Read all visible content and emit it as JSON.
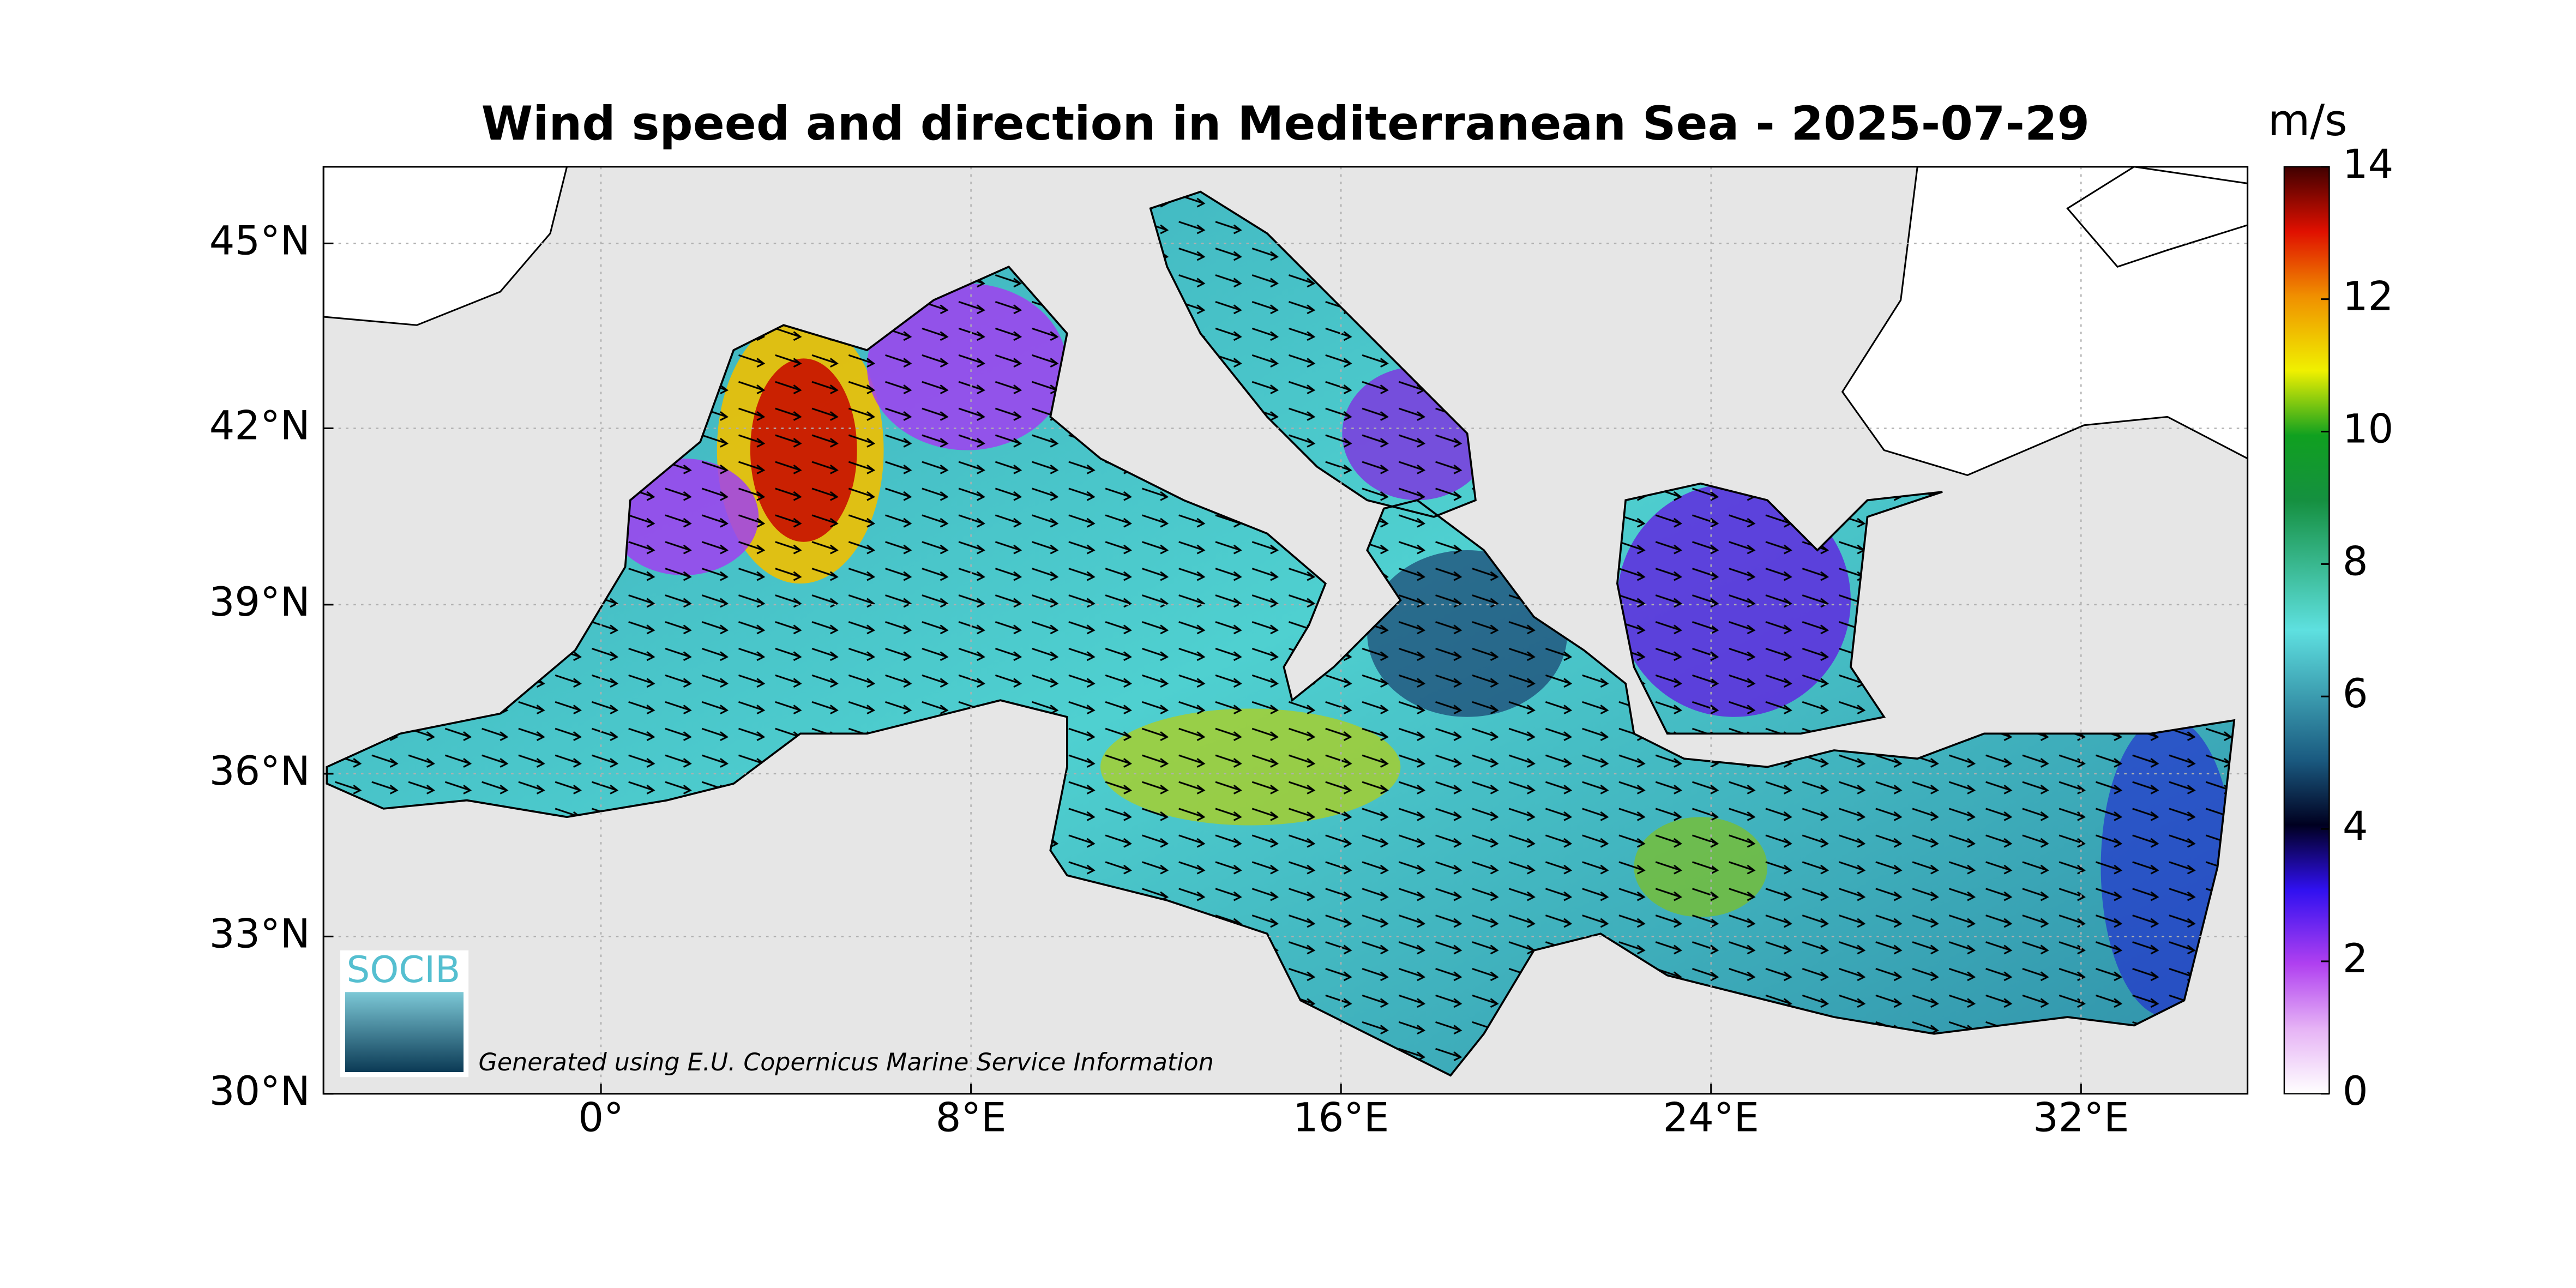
{
  "chart_data": {
    "type": "map",
    "title": "Wind speed and direction in Mediterranean Sea - 2025-07-29",
    "xlim": [
      -6,
      35.6
    ],
    "ylim": [
      30,
      46.2
    ],
    "xticks": [
      {
        "value": 0,
        "label": "0°"
      },
      {
        "value": 8,
        "label": "8°E"
      },
      {
        "value": 16,
        "label": "16°E"
      },
      {
        "value": 24,
        "label": "24°E"
      },
      {
        "value": 32,
        "label": "32°E"
      }
    ],
    "yticks": [
      {
        "value": 30,
        "label": "30°N"
      },
      {
        "value": 33,
        "label": "33°N"
      },
      {
        "value": 36,
        "label": "36°N"
      },
      {
        "value": 39,
        "label": "39°N"
      },
      {
        "value": 42,
        "label": "42°N"
      },
      {
        "value": 45,
        "label": "45°N"
      }
    ],
    "grid": true,
    "colorbar": {
      "label": "m/s",
      "lim": [
        0,
        14
      ],
      "ticks": [
        0,
        2,
        4,
        6,
        8,
        10,
        12,
        14
      ]
    },
    "credit": "Generated using E.U. Copernicus Marine Service Information",
    "logo": "SOCIB"
  }
}
